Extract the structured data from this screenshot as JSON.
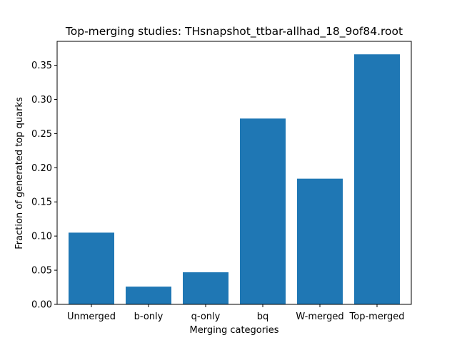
{
  "chart_data": {
    "type": "bar",
    "title": "Top-merging studies: THsnapshot_ttbar-allhad_18_9of84.root",
    "xlabel": "Merging categories",
    "ylabel": "Fraction of generated top quarks",
    "categories": [
      "Unmerged",
      "b-only",
      "q-only",
      "bq",
      "W-merged",
      "Top-merged"
    ],
    "values": [
      0.105,
      0.026,
      0.047,
      0.272,
      0.184,
      0.366
    ],
    "ylim": [
      0,
      0.385
    ],
    "yticks": [
      0.0,
      0.05,
      0.1,
      0.15,
      0.2,
      0.25,
      0.3,
      0.35
    ],
    "ytick_labels": [
      "0.00",
      "0.05",
      "0.10",
      "0.15",
      "0.20",
      "0.25",
      "0.30",
      "0.35"
    ],
    "grid": false,
    "legend": false,
    "colors": {
      "bar": "#1f77b4",
      "axis": "#000000",
      "background": "#ffffff"
    }
  }
}
